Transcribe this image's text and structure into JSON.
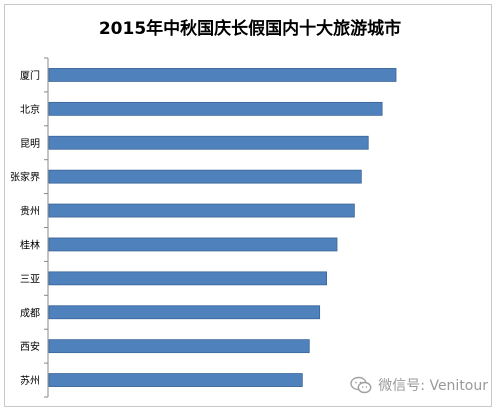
{
  "chart_data": {
    "type": "bar",
    "orientation": "horizontal",
    "title": "2015年中秋国庆长假国内十大旅游城市",
    "categories": [
      "厦门",
      "北京",
      "昆明",
      "张家界",
      "贵州",
      "桂林",
      "三亚",
      "成都",
      "西安",
      "苏州"
    ],
    "values": [
      100,
      96,
      92,
      90,
      88,
      83,
      80,
      78,
      75,
      73
    ],
    "xlim": [
      0,
      100
    ],
    "grid": false,
    "legend": "none",
    "bar_color": "#4f81bd",
    "bar_edge_color": "#3a6496"
  },
  "watermark": {
    "text": "微信号: Venitour",
    "icon": "wechat-icon"
  }
}
